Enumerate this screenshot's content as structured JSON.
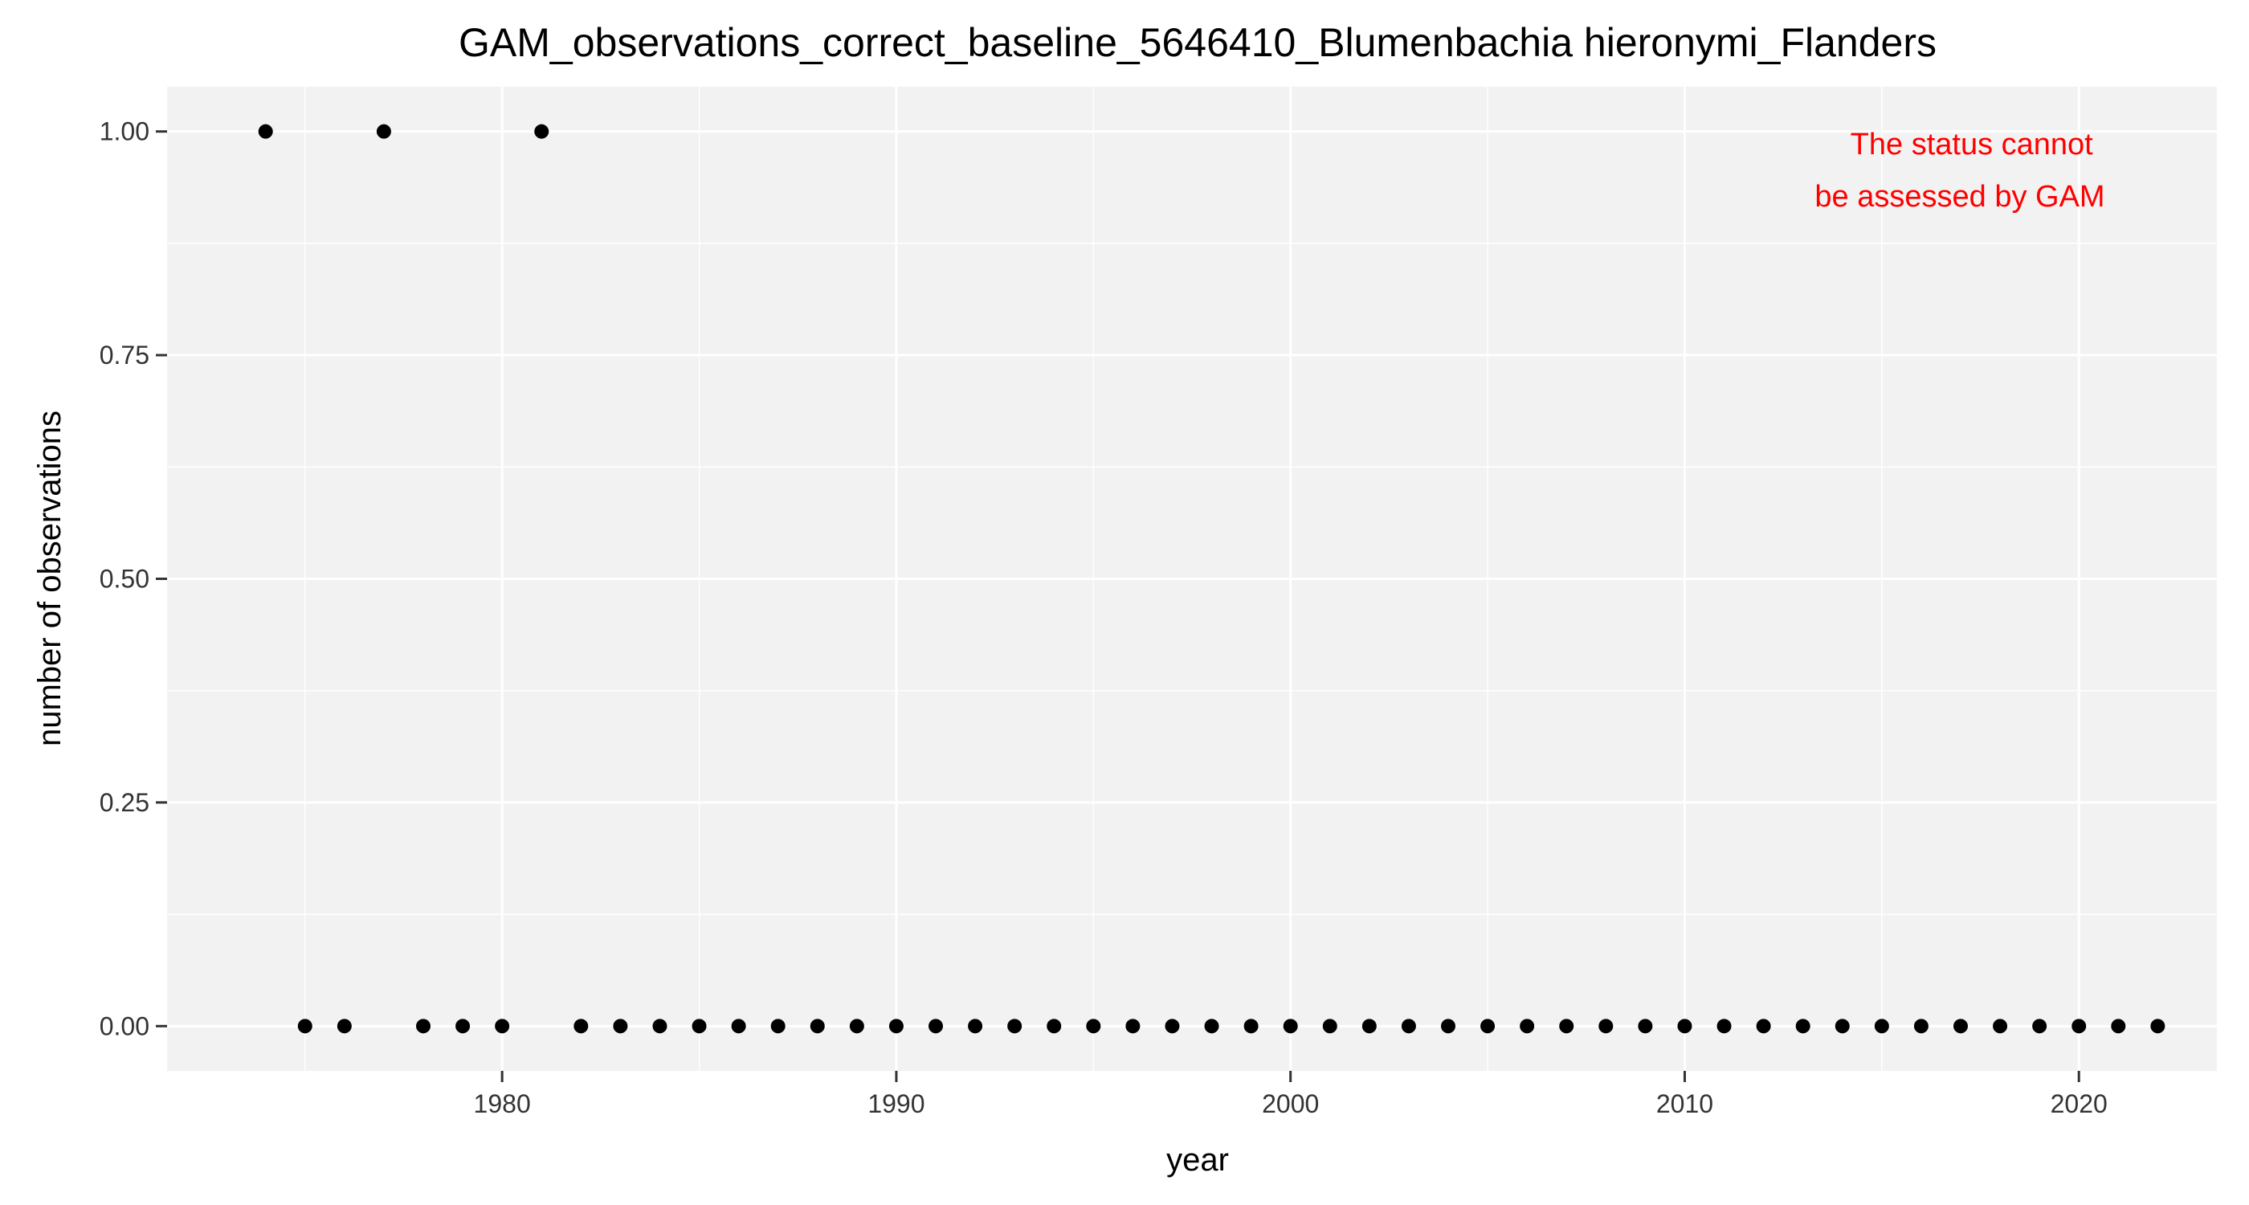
{
  "chart_data": {
    "type": "scatter",
    "title": "GAM_observations_correct_baseline_5646410_Blumenbachia hieronymi_Flanders",
    "xlabel": "year",
    "ylabel": "number of observations",
    "xlim": [
      1971.5,
      2023.5
    ],
    "ylim": [
      -0.05,
      1.05
    ],
    "x_ticks": [
      1980,
      1990,
      2000,
      2010,
      2020
    ],
    "y_ticks": [
      0,
      0.25,
      0.5,
      0.75,
      1
    ],
    "x_tick_labels": [
      "1980",
      "1990",
      "2000",
      "2010",
      "2020"
    ],
    "y_tick_labels": [
      "0.00",
      "0.25",
      "0.50",
      "0.75",
      "1.00"
    ],
    "grid": true,
    "panel_color": "#f2f2f2",
    "point_color": "#000000",
    "annotation": {
      "lines": [
        "The status cannot",
        "be assessed by GAM"
      ],
      "color": "#ff0000",
      "position": "top-right"
    },
    "x": [
      1974,
      1975,
      1976,
      1977,
      1978,
      1979,
      1980,
      1981,
      1982,
      1983,
      1984,
      1985,
      1986,
      1987,
      1988,
      1989,
      1990,
      1991,
      1992,
      1993,
      1994,
      1995,
      1996,
      1997,
      1998,
      1999,
      2000,
      2001,
      2002,
      2003,
      2004,
      2005,
      2006,
      2007,
      2008,
      2009,
      2010,
      2011,
      2012,
      2013,
      2014,
      2015,
      2016,
      2017,
      2018,
      2019,
      2020,
      2021,
      2022
    ],
    "y": [
      1,
      0,
      0,
      1,
      0,
      0,
      0,
      1,
      0,
      0,
      0,
      0,
      0,
      0,
      0,
      0,
      0,
      0,
      0,
      0,
      0,
      0,
      0,
      0,
      0,
      0,
      0,
      0,
      0,
      0,
      0,
      0,
      0,
      0,
      0,
      0,
      0,
      0,
      0,
      0,
      0,
      0,
      0,
      0,
      0,
      0,
      0,
      0,
      0
    ]
  }
}
